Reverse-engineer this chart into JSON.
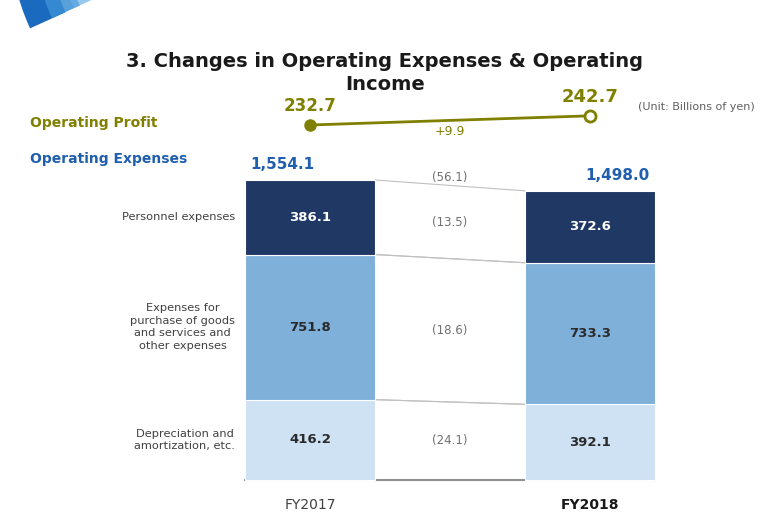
{
  "title": "3. Changes in Operating Expenses & Operating\nIncome",
  "unit_label": "(Unit: Billions of yen)",
  "background_color": "#ffffff",
  "operating_profit_label": "Operating Profit",
  "op_profit_fy2017": 232.7,
  "op_profit_fy2018": 242.7,
  "op_profit_change": "+9.9",
  "op_profit_color": "#808000",
  "op_expenses_label": "Operating Expenses",
  "op_expenses_fy2017": "1,554.1",
  "op_expenses_fy2018": "1,498.0",
  "op_expenses_change": "(56.1)",
  "categories": [
    "Personnel expenses",
    "Expenses for\npurchase of goods\nand services and\nother expenses",
    "Depreciation and\namortization, etc."
  ],
  "fy2017_values": [
    386.1,
    751.8,
    416.2
  ],
  "fy2018_values": [
    372.6,
    733.3,
    392.1
  ],
  "changes": [
    "(13.5)",
    "(18.6)",
    "(24.1)"
  ],
  "bar_colors": [
    "#1f3864",
    "#7eb0d9",
    "#cfe2f3"
  ],
  "fy2017_label": "FY2017",
  "fy2018_label": "FY2018",
  "title_color": "#1a1a1a",
  "op_expenses_label_color": "#1f5fad",
  "op_expenses_value_color": "#1f5fad",
  "change_label_color": "#808080",
  "bar_text_white": true,
  "axis_label_color": "#404040"
}
